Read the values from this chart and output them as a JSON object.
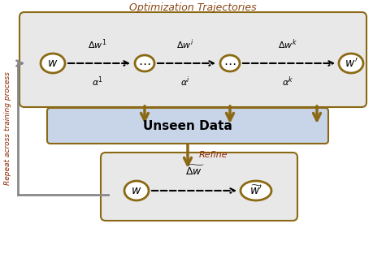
{
  "title": "Optimization Trajectories",
  "title_color": "#8B4513",
  "background_color": "#ffffff",
  "gold_color": "#8B6914",
  "gray_color": "#888888",
  "dark_red": "#8B2500",
  "box1_bg": "#e8e8e8",
  "box2_bg": "#c8d4e8",
  "box3_bg": "#e8e8e8",
  "unseen_label": "Unseen Data",
  "refine_label": "Refine",
  "repeat_label": "Repeat across training process"
}
